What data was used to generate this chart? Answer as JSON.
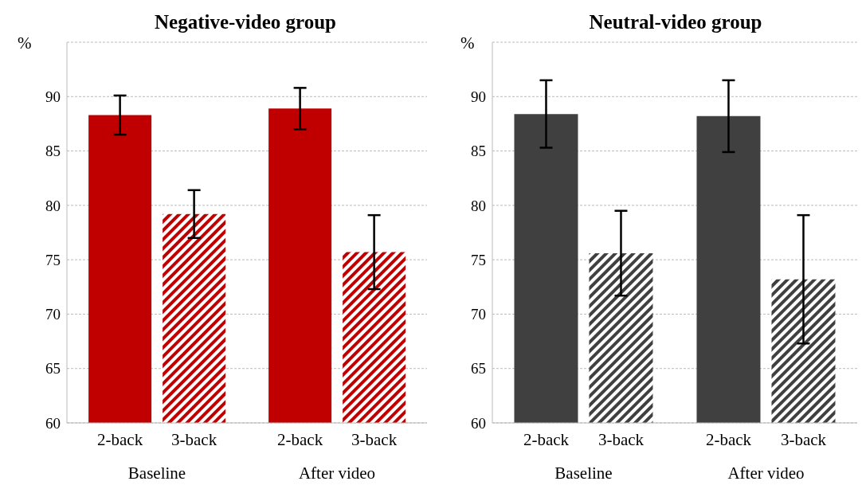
{
  "chart_data": [
    {
      "type": "bar",
      "title": "Negative-video group",
      "ylabel": "%",
      "categories": [
        "Baseline",
        "After video"
      ],
      "series": [
        {
          "name": "2-back",
          "color": "#c00000",
          "values": [
            88.3,
            88.9
          ],
          "errors": [
            1.8,
            1.9
          ]
        },
        {
          "name": "3-back",
          "color": "#c00000",
          "values": [
            79.2,
            75.7
          ],
          "errors": [
            2.2,
            3.4
          ]
        }
      ],
      "ylim": [
        60,
        95
      ],
      "yticks": [
        60,
        65,
        70,
        75,
        80,
        85,
        90
      ],
      "grid": "y",
      "legend": false
    },
    {
      "type": "bar",
      "title": "Neutral-video group",
      "ylabel": "%",
      "categories": [
        "Baseline",
        "After video"
      ],
      "series": [
        {
          "name": "2-back",
          "color": "#404040",
          "values": [
            88.4,
            88.2
          ],
          "errors": [
            3.1,
            3.3
          ]
        },
        {
          "name": "3-back",
          "color": "#404040",
          "values": [
            75.6,
            73.2
          ],
          "errors": [
            3.9,
            5.9
          ]
        }
      ],
      "ylim": [
        60,
        95
      ],
      "yticks": [
        60,
        65,
        70,
        75,
        80,
        85,
        90
      ],
      "grid": "y",
      "legend": false
    }
  ]
}
